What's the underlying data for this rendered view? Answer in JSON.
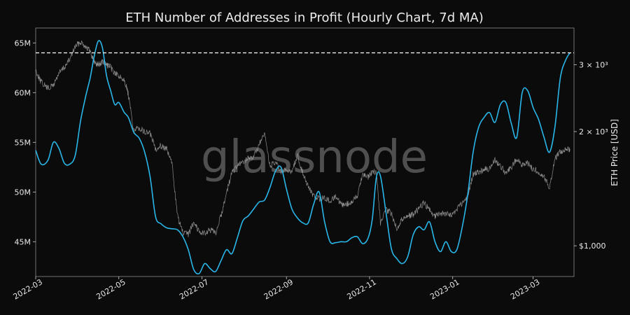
{
  "chart_data": {
    "type": "line",
    "title": "ETH Number of Addresses in Profit (Hourly Chart, 7d MA)",
    "watermark": "glassnode",
    "ylabel_right": "ETH Price [USD]",
    "x_ticks": [
      "2022-03",
      "2022-05",
      "2022-07",
      "2022-09",
      "2022-11",
      "2023-01",
      "2023-03"
    ],
    "xlim": [
      "2022-03-01",
      "2023-03-31"
    ],
    "y_left": {
      "lim": [
        41500000,
        66500000
      ],
      "ticks": [
        45000000,
        50000000,
        55000000,
        60000000,
        65000000
      ],
      "tick_labels": [
        "45M",
        "50M",
        "55M",
        "60M",
        "65M"
      ]
    },
    "y_right": {
      "scale": "log",
      "lim": [
        830,
        3750
      ],
      "ticks": [
        1000,
        2000,
        3000
      ],
      "tick_labels": [
        "$1,000",
        "2 × 10³",
        "3 × 10³"
      ]
    },
    "reference_line": {
      "y": 64000000,
      "style": "dashed",
      "color": "#ffffff"
    },
    "grid": false,
    "series": [
      {
        "axis": "left",
        "color": "#29b6e8",
        "x": [
          "2022-03-01",
          "2022-03-05",
          "2022-03-10",
          "2022-03-14",
          "2022-03-18",
          "2022-03-22",
          "2022-03-26",
          "2022-03-30",
          "2022-04-03",
          "2022-04-07",
          "2022-04-10",
          "2022-04-13",
          "2022-04-16",
          "2022-04-19",
          "2022-04-22",
          "2022-04-25",
          "2022-04-28",
          "2022-05-01",
          "2022-05-05",
          "2022-05-08",
          "2022-05-12",
          "2022-05-16",
          "2022-05-20",
          "2022-05-24",
          "2022-05-28",
          "2022-06-01",
          "2022-06-05",
          "2022-06-09",
          "2022-06-13",
          "2022-06-17",
          "2022-06-21",
          "2022-06-25",
          "2022-06-29",
          "2022-07-03",
          "2022-07-07",
          "2022-07-11",
          "2022-07-15",
          "2022-07-19",
          "2022-07-23",
          "2022-07-27",
          "2022-07-31",
          "2022-08-04",
          "2022-08-08",
          "2022-08-12",
          "2022-08-16",
          "2022-08-20",
          "2022-08-24",
          "2022-08-28",
          "2022-09-01",
          "2022-09-05",
          "2022-09-09",
          "2022-09-13",
          "2022-09-17",
          "2022-09-21",
          "2022-09-25",
          "2022-09-29",
          "2022-10-03",
          "2022-10-07",
          "2022-10-11",
          "2022-10-15",
          "2022-10-19",
          "2022-10-23",
          "2022-10-27",
          "2022-10-31",
          "2022-11-03",
          "2022-11-06",
          "2022-11-09",
          "2022-11-13",
          "2022-11-17",
          "2022-11-21",
          "2022-11-25",
          "2022-11-29",
          "2022-12-03",
          "2022-12-07",
          "2022-12-11",
          "2022-12-15",
          "2022-12-19",
          "2022-12-23",
          "2022-12-27",
          "2022-12-31",
          "2023-01-04",
          "2023-01-08",
          "2023-01-12",
          "2023-01-16",
          "2023-01-20",
          "2023-01-24",
          "2023-01-28",
          "2023-02-01",
          "2023-02-05",
          "2023-02-09",
          "2023-02-13",
          "2023-02-17",
          "2023-02-21",
          "2023-02-25",
          "2023-03-01",
          "2023-03-05",
          "2023-03-09",
          "2023-03-13",
          "2023-03-17",
          "2023-03-21",
          "2023-03-25",
          "2023-03-28"
        ],
        "y": [
          54200000,
          52800000,
          53200000,
          55000000,
          54400000,
          52900000,
          52800000,
          53700000,
          57200000,
          59800000,
          61500000,
          63700000,
          65200000,
          64500000,
          61700000,
          60200000,
          58800000,
          59000000,
          58000000,
          57500000,
          56000000,
          55400000,
          54000000,
          51500000,
          47500000,
          46800000,
          46400000,
          46300000,
          46200000,
          45500000,
          44200000,
          42200000,
          41800000,
          42800000,
          42300000,
          42000000,
          43100000,
          44200000,
          43800000,
          45400000,
          47100000,
          47600000,
          48300000,
          49000000,
          49200000,
          50500000,
          52100000,
          52500000,
          50300000,
          48300000,
          47400000,
          46900000,
          46900000,
          48800000,
          50000000,
          47000000,
          45000000,
          44900000,
          45000000,
          45000000,
          45400000,
          45500000,
          44800000,
          45400000,
          47300000,
          51500000,
          51600000,
          48000000,
          44300000,
          43300000,
          42800000,
          43500000,
          45700000,
          46500000,
          46200000,
          47000000,
          45000000,
          44000000,
          45000000,
          44000000,
          44200000,
          46500000,
          49700000,
          54000000,
          56500000,
          57500000,
          58000000,
          57000000,
          58800000,
          59000000,
          56900000,
          55500000,
          60000000,
          60200000,
          58500000,
          57300000,
          55500000,
          54000000,
          56500000,
          61500000,
          63300000,
          64000000
        ]
      },
      {
        "axis": "right",
        "color": "#9a9a9a",
        "x": [
          "2022-03-01",
          "2022-03-05",
          "2022-03-10",
          "2022-03-14",
          "2022-03-18",
          "2022-03-22",
          "2022-03-26",
          "2022-03-30",
          "2022-04-03",
          "2022-04-07",
          "2022-04-10",
          "2022-04-13",
          "2022-04-16",
          "2022-04-19",
          "2022-04-22",
          "2022-04-25",
          "2022-04-28",
          "2022-05-01",
          "2022-05-05",
          "2022-05-08",
          "2022-05-12",
          "2022-05-16",
          "2022-05-20",
          "2022-05-24",
          "2022-05-28",
          "2022-06-01",
          "2022-06-05",
          "2022-06-09",
          "2022-06-13",
          "2022-06-17",
          "2022-06-21",
          "2022-06-25",
          "2022-06-29",
          "2022-07-03",
          "2022-07-07",
          "2022-07-11",
          "2022-07-15",
          "2022-07-19",
          "2022-07-23",
          "2022-07-27",
          "2022-07-31",
          "2022-08-04",
          "2022-08-08",
          "2022-08-12",
          "2022-08-16",
          "2022-08-20",
          "2022-08-24",
          "2022-08-28",
          "2022-09-01",
          "2022-09-05",
          "2022-09-09",
          "2022-09-13",
          "2022-09-17",
          "2022-09-21",
          "2022-09-25",
          "2022-09-29",
          "2022-10-03",
          "2022-10-07",
          "2022-10-11",
          "2022-10-15",
          "2022-10-19",
          "2022-10-23",
          "2022-10-27",
          "2022-10-31",
          "2022-11-03",
          "2022-11-06",
          "2022-11-09",
          "2022-11-13",
          "2022-11-17",
          "2022-11-21",
          "2022-11-25",
          "2022-11-29",
          "2022-12-03",
          "2022-12-07",
          "2022-12-11",
          "2022-12-15",
          "2022-12-19",
          "2022-12-23",
          "2022-12-27",
          "2022-12-31",
          "2023-01-04",
          "2023-01-08",
          "2023-01-12",
          "2023-01-16",
          "2023-01-20",
          "2023-01-24",
          "2023-01-28",
          "2023-02-01",
          "2023-02-05",
          "2023-02-09",
          "2023-02-13",
          "2023-02-17",
          "2023-02-21",
          "2023-02-25",
          "2023-03-01",
          "2023-03-05",
          "2023-03-09",
          "2023-03-13",
          "2023-03-17",
          "2023-03-21",
          "2023-03-25",
          "2023-03-28"
        ],
        "y": [
          2900,
          2700,
          2600,
          2650,
          2850,
          2950,
          3100,
          3350,
          3450,
          3350,
          3250,
          3050,
          3000,
          3050,
          3000,
          2950,
          2850,
          2800,
          2750,
          2500,
          2000,
          2050,
          1990,
          1980,
          1800,
          1840,
          1800,
          1650,
          1200,
          1080,
          1070,
          1160,
          1090,
          1080,
          1100,
          1080,
          1200,
          1380,
          1560,
          1620,
          1660,
          1700,
          1720,
          1850,
          1960,
          1620,
          1660,
          1560,
          1580,
          1570,
          1730,
          1560,
          1430,
          1350,
          1330,
          1340,
          1310,
          1350,
          1280,
          1290,
          1300,
          1360,
          1550,
          1520,
          1570,
          1560,
          1150,
          1240,
          1220,
          1110,
          1180,
          1200,
          1210,
          1250,
          1300,
          1240,
          1200,
          1210,
          1220,
          1200,
          1250,
          1290,
          1350,
          1550,
          1560,
          1590,
          1600,
          1680,
          1630,
          1550,
          1610,
          1700,
          1630,
          1650,
          1590,
          1570,
          1520,
          1420,
          1700,
          1770,
          1790,
          1800
        ]
      }
    ]
  }
}
